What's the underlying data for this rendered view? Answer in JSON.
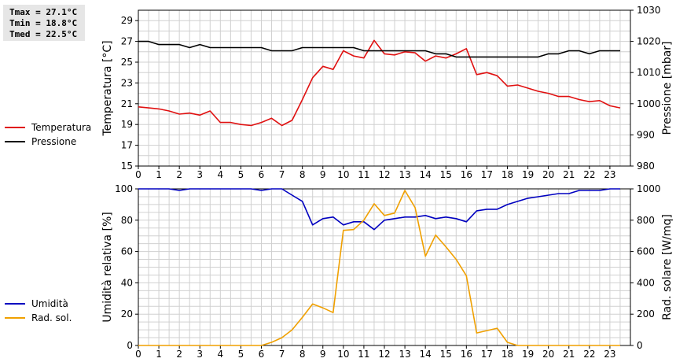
{
  "stats": {
    "tmax": "Tmax = 27.1°C",
    "tmin": "Tmin = 18.8°C",
    "tmed": "Tmed = 22.5°C"
  },
  "colors": {
    "temperature": "#e01010",
    "pressure": "#000000",
    "humidity": "#0000c0",
    "radiation": "#f0a000",
    "grid": "#d0d0d0"
  },
  "chart_data": [
    {
      "type": "line",
      "title": "",
      "x_ticks": [
        "0",
        "1",
        "2",
        "3",
        "4",
        "5",
        "6",
        "7",
        "8",
        "9",
        "10",
        "11",
        "12",
        "13",
        "14",
        "15",
        "16",
        "17",
        "18",
        "19",
        "20",
        "21",
        "22",
        "23"
      ],
      "xlim": [
        0,
        24
      ],
      "ylabel": "Temperatura [°C]",
      "ylabel_right": "Pressione [mbar]",
      "ylim": [
        15,
        30
      ],
      "ylim_right": [
        980,
        1030
      ],
      "y_ticks": [
        "15",
        "17",
        "19",
        "21",
        "23",
        "25",
        "27",
        "29"
      ],
      "y_ticks_right": [
        "980",
        "990",
        "1000",
        "1010",
        "1020",
        "1030"
      ],
      "grid": true,
      "legend_position": "left",
      "series": [
        {
          "name": "Temperatura",
          "axis": "left",
          "x": [
            0,
            0.5,
            1,
            1.5,
            2,
            2.5,
            3,
            3.5,
            4,
            4.5,
            5,
            5.5,
            6,
            6.5,
            7,
            7.5,
            8,
            8.5,
            9,
            9.5,
            10,
            10.5,
            11,
            11.5,
            12,
            12.5,
            13,
            13.5,
            14,
            14.5,
            15,
            15.5,
            16,
            16.5,
            17,
            17.5,
            18,
            18.5,
            19,
            19.5,
            20,
            20.5,
            21,
            21.5,
            22,
            22.5,
            23,
            23.5
          ],
          "values": [
            20.7,
            20.6,
            20.5,
            20.3,
            20.0,
            20.1,
            19.9,
            20.3,
            19.2,
            19.2,
            19.0,
            18.9,
            19.2,
            19.6,
            18.9,
            19.4,
            21.4,
            23.5,
            24.6,
            24.3,
            26.1,
            25.6,
            25.4,
            27.1,
            25.8,
            25.7,
            26.0,
            25.9,
            25.1,
            25.6,
            25.4,
            25.8,
            26.3,
            23.8,
            24.0,
            23.7,
            22.7,
            22.8,
            22.5,
            22.2,
            22.0,
            21.7,
            21.7,
            21.4,
            21.2,
            21.3,
            20.8,
            20.6
          ]
        },
        {
          "name": "Pressione",
          "axis": "right",
          "x": [
            0,
            0.5,
            1,
            1.5,
            2,
            2.5,
            3,
            3.5,
            4,
            4.5,
            5,
            5.5,
            6,
            6.5,
            7,
            7.5,
            8,
            8.5,
            9,
            9.5,
            10,
            10.5,
            11,
            11.5,
            12,
            12.5,
            13,
            13.5,
            14,
            14.5,
            15,
            15.5,
            16,
            16.5,
            17,
            17.5,
            18,
            18.5,
            19,
            19.5,
            20,
            20.5,
            21,
            21.5,
            22,
            22.5,
            23,
            23.5
          ],
          "values": [
            1020,
            1020,
            1019,
            1019,
            1019,
            1018,
            1019,
            1018,
            1018,
            1018,
            1018,
            1018,
            1018,
            1017,
            1017,
            1017,
            1018,
            1018,
            1018,
            1018,
            1018,
            1018,
            1017,
            1017,
            1017,
            1017,
            1017,
            1017,
            1017,
            1016,
            1016,
            1015,
            1015,
            1015,
            1015,
            1015,
            1015,
            1015,
            1015,
            1015,
            1016,
            1016,
            1017,
            1017,
            1016,
            1017,
            1017,
            1017
          ]
        }
      ]
    },
    {
      "type": "line",
      "title": "",
      "x_ticks": [
        "0",
        "1",
        "2",
        "3",
        "4",
        "5",
        "6",
        "7",
        "8",
        "9",
        "10",
        "11",
        "12",
        "13",
        "14",
        "15",
        "16",
        "17",
        "18",
        "19",
        "20",
        "21",
        "22",
        "23"
      ],
      "xlim": [
        0,
        24
      ],
      "ylabel": "Umidità relativa [%]",
      "ylabel_right": "Rad. solare [W/mq]",
      "ylim": [
        0,
        100
      ],
      "ylim_right": [
        0,
        1000
      ],
      "y_ticks": [
        "0",
        "20",
        "40",
        "60",
        "80",
        "100"
      ],
      "y_ticks_right": [
        "0",
        "200",
        "400",
        "600",
        "800",
        "1000"
      ],
      "grid": true,
      "legend_position": "left",
      "series": [
        {
          "name": "Umidità",
          "axis": "left",
          "x": [
            0,
            0.5,
            1,
            1.5,
            2,
            2.5,
            3,
            3.5,
            4,
            4.5,
            5,
            5.5,
            6,
            6.5,
            7,
            7.5,
            8,
            8.5,
            9,
            9.5,
            10,
            10.5,
            11,
            11.5,
            12,
            12.5,
            13,
            13.5,
            14,
            14.5,
            15,
            15.5,
            16,
            16.5,
            17,
            17.5,
            18,
            18.5,
            19,
            19.5,
            20,
            20.5,
            21,
            21.5,
            22,
            22.5,
            23,
            23.5
          ],
          "values": [
            100,
            100,
            100,
            100,
            99,
            100,
            100,
            100,
            100,
            100,
            100,
            100,
            99,
            100,
            100,
            96,
            92,
            77,
            81,
            82,
            77,
            79,
            79,
            74,
            80,
            81,
            82,
            82,
            83,
            81,
            82,
            81,
            79,
            86,
            87,
            87,
            90,
            92,
            94,
            95,
            96,
            97,
            97,
            99,
            99,
            99,
            100,
            100
          ]
        },
        {
          "name": "Rad. sol.",
          "axis": "right",
          "x": [
            0,
            0.5,
            1,
            1.5,
            2,
            2.5,
            3,
            3.5,
            4,
            4.5,
            5,
            5.5,
            6,
            6.5,
            7,
            7.5,
            8,
            8.5,
            9,
            9.5,
            10,
            10.5,
            11,
            11.5,
            12,
            12.5,
            13,
            13.5,
            14,
            14.5,
            15,
            15.5,
            16,
            16.5,
            17,
            17.5,
            18,
            18.5,
            19,
            19.5,
            20,
            20.5,
            21,
            21.5,
            22,
            22.5,
            23,
            23.5
          ],
          "values": [
            0,
            0,
            0,
            0,
            0,
            0,
            0,
            0,
            0,
            0,
            0,
            0,
            0,
            20,
            50,
            100,
            180,
            265,
            240,
            210,
            735,
            740,
            800,
            905,
            830,
            845,
            990,
            880,
            570,
            705,
            630,
            550,
            445,
            80,
            95,
            110,
            20,
            0,
            0,
            0,
            0,
            0,
            0,
            0,
            0,
            0,
            0,
            0
          ]
        }
      ]
    }
  ]
}
